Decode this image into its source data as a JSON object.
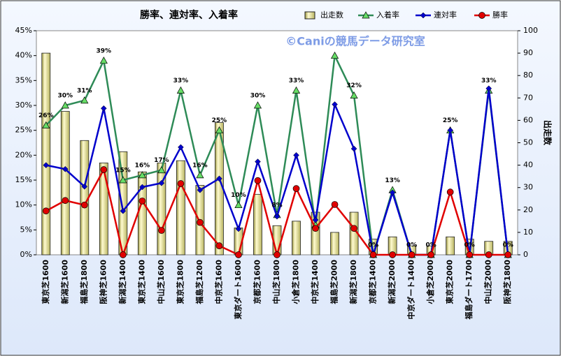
{
  "chart_data": {
    "type": "bar",
    "title": "勝率、連対率、入着率",
    "annotation": "©Caniの競馬データ研究室",
    "y2label": "出走数",
    "categories": [
      "東京芝1600",
      "新潟芝1600",
      "福島芝1800",
      "阪神芝1600",
      "新潟芝1400",
      "東京芝1400",
      "中山芝1600",
      "東京芝1800",
      "福島芝1200",
      "中京芝1600",
      "東京ダート1600",
      "京都芝1600",
      "中山芝1800",
      "小倉芝1800",
      "中京芝1400",
      "福島芝2000",
      "新潟芝1800",
      "京都芝1400",
      "新潟芝2000",
      "中京ダート1400",
      "小倉芝2000",
      "東京芝2000",
      "福島ダート1700",
      "中山芝2000",
      "阪神芝1800"
    ],
    "ylim": [
      0,
      45
    ],
    "yticks": [
      {
        "value": 0,
        "label": "0%"
      },
      {
        "value": 5,
        "label": "5%"
      },
      {
        "value": 10,
        "label": "10%"
      },
      {
        "value": 15,
        "label": "15%"
      },
      {
        "value": 20,
        "label": "20%"
      },
      {
        "value": 25,
        "label": "25%"
      },
      {
        "value": 30,
        "label": "30%"
      },
      {
        "value": 35,
        "label": "35%"
      },
      {
        "value": 40,
        "label": "40%"
      },
      {
        "value": 45,
        "label": "45%"
      }
    ],
    "y2lim": [
      0,
      100
    ],
    "y2ticks": [
      0,
      10,
      20,
      30,
      40,
      50,
      60,
      70,
      80,
      90,
      100
    ],
    "legend": "top",
    "series": [
      {
        "name": "出走数",
        "type": "bar",
        "axis": "y2",
        "color": "#f2f0a0",
        "values": [
          90,
          64,
          51,
          41,
          46,
          37,
          41,
          42,
          31,
          59,
          12,
          27,
          13,
          15,
          19,
          10,
          19,
          7,
          8,
          4,
          4,
          8,
          7,
          6,
          6
        ]
      },
      {
        "name": "入着率",
        "type": "line",
        "marker": "triangle",
        "color": "#2e8b57",
        "marker_color": "#66dd66",
        "values": [
          26,
          30,
          31,
          39,
          15,
          16,
          17,
          33,
          16,
          25,
          10,
          30,
          8,
          33,
          6,
          40,
          32,
          0,
          13,
          0,
          0,
          25,
          0,
          33,
          0
        ],
        "value_labels": [
          "26%",
          "30%",
          "31%",
          "39%",
          "15%",
          "16%",
          "17%",
          "33%",
          "16%",
          "25%",
          "10%",
          "30%",
          "8%",
          "33%",
          null,
          null,
          "32%",
          "0%",
          "13%",
          "0%",
          "0%",
          "25%",
          "0%",
          "33%",
          "0%"
        ]
      },
      {
        "name": "連対率",
        "type": "line",
        "marker": "diamond",
        "color": "#0000cc",
        "marker_color": "#0000cc",
        "values": [
          18,
          17.2,
          13.7,
          29.4,
          8.8,
          13.6,
          14.4,
          21.6,
          13,
          15.3,
          5.2,
          18.7,
          7.7,
          20,
          7,
          30.2,
          21.3,
          0,
          12.5,
          0,
          0,
          25,
          0,
          33.4,
          0
        ]
      },
      {
        "name": "勝率",
        "type": "line",
        "marker": "circle",
        "color": "#e00000",
        "marker_color": "#e00000",
        "values": [
          8.8,
          10.9,
          10,
          17.1,
          0,
          10.8,
          4.9,
          14.3,
          6.5,
          1.8,
          0,
          14.9,
          0,
          13.3,
          5.3,
          10.1,
          5.3,
          0,
          0,
          0,
          0,
          12.6,
          0,
          0,
          0
        ]
      }
    ]
  }
}
